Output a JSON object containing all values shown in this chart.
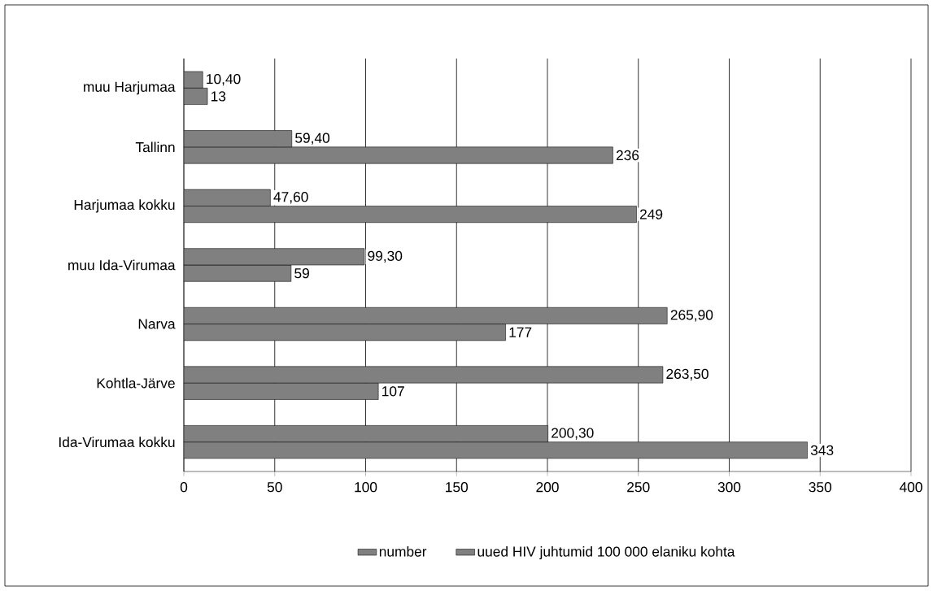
{
  "chart_data": {
    "type": "bar",
    "orientation": "horizontal",
    "categories": [
      "muu Harjumaa",
      "Tallinn",
      "Harjumaa kokku",
      "muu Ida-Virumaa",
      "Narva",
      "Kohtla-Järve",
      "Ida-Virumaa kokku"
    ],
    "series": [
      {
        "name": "number",
        "color": "#808080",
        "values": [
          13,
          236,
          249,
          59,
          177,
          107,
          343
        ],
        "value_labels": [
          "13",
          "236",
          "249",
          "59",
          "177",
          "107",
          "343"
        ]
      },
      {
        "name": "uued HIV juhtumid 100 000 elaniku kohta",
        "color": "#808080",
        "values": [
          10.4,
          59.4,
          47.6,
          99.3,
          265.9,
          263.5,
          200.3
        ],
        "value_labels": [
          "10,40",
          "59,40",
          "47,60",
          "99,30",
          "265,90",
          "263,50",
          "200,30"
        ]
      }
    ],
    "xlim": [
      0,
      400
    ],
    "xticks": [
      0,
      50,
      100,
      150,
      200,
      250,
      300,
      350,
      400
    ],
    "grid": "x",
    "legend": "bottom"
  }
}
